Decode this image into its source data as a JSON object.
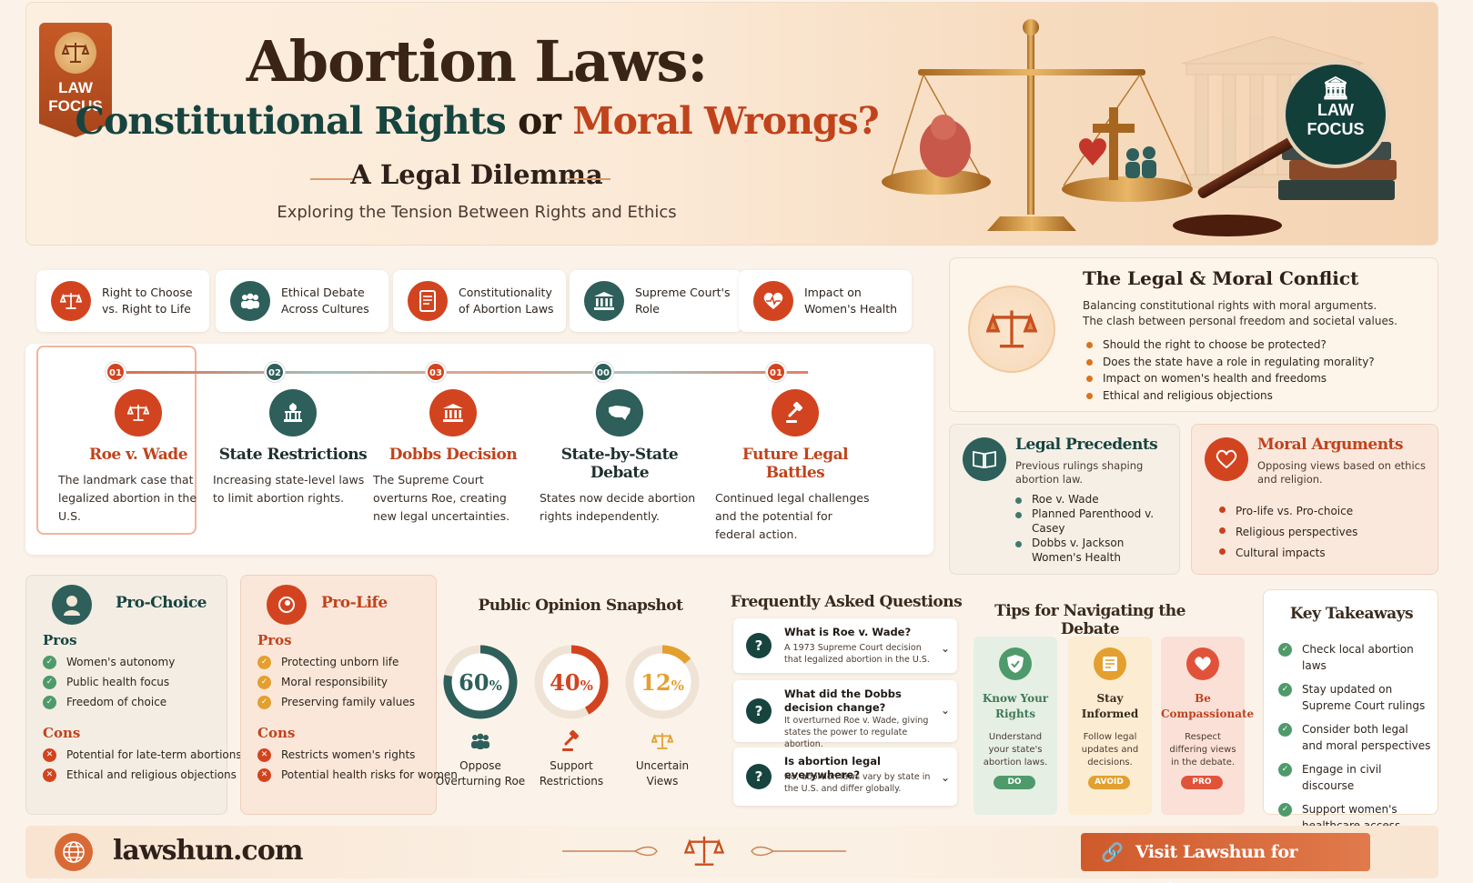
{
  "header": {
    "badge_left": "LAW\nFOCUS",
    "badge_left_line1": "LAW",
    "badge_left_line2": "FOCUS",
    "title": "Abortion Laws:",
    "subtitle_part1": "Constitutional Rights",
    "subtitle_or": "or",
    "subtitle_part2": "Moral Wrongs?",
    "dilemma": "A Legal Dilemma",
    "tagline": "Exploring the Tension Between Rights and Ethics",
    "badge_right_line1": "LAW",
    "badge_right_line2": "FOCUS"
  },
  "topics": [
    {
      "line1": "Right to Choose",
      "line2": "vs. Right to Life",
      "icon": "scales-icon",
      "color": "#d2441f"
    },
    {
      "line1": "Ethical Debate",
      "line2": "Across Cultures",
      "icon": "people-icon",
      "color": "#2e5f5a"
    },
    {
      "line1": "Constitutionality",
      "line2": "of Abortion Laws",
      "icon": "document-icon",
      "color": "#d2441f"
    },
    {
      "line1": "Supreme Court's",
      "line2": "Role",
      "icon": "courthouse-icon",
      "color": "#2e5f5a"
    },
    {
      "line1": "Impact on",
      "line2": "Women's Health",
      "icon": "heart-pulse-icon",
      "color": "#d2441f"
    }
  ],
  "timeline": [
    {
      "num": "01",
      "title": "Roe v. Wade",
      "desc": "The landmark case that legalized abortion in the U.S.",
      "color": "#d2441f",
      "title_color": "#c0431c",
      "icon": "scales-icon"
    },
    {
      "num": "02",
      "title": "State Restrictions",
      "desc": "Increasing state-level laws to limit abortion rights.",
      "color": "#2e5f5a",
      "title_color": "#1e2f2d",
      "icon": "statehouse-icon"
    },
    {
      "num": "03",
      "title": "Dobbs Decision",
      "desc": "The Supreme Court overturns Roe, creating new legal uncertainties.",
      "color": "#d2441f",
      "title_color": "#c0431c",
      "icon": "courthouse-icon"
    },
    {
      "num": "00",
      "title": "State-by-State Debate",
      "desc": "States now decide abortion rights independently.",
      "color": "#2e5f5a",
      "title_color": "#1e2f2d",
      "icon": "us-map-icon"
    },
    {
      "num": "01",
      "title": "Future Legal Battles",
      "desc": "Continued legal challenges and the potential for federal action.",
      "color": "#d2441f",
      "title_color": "#c0431c",
      "icon": "gavel-icon"
    }
  ],
  "conflict": {
    "title": "The Legal & Moral Conflict",
    "desc_line1": "Balancing constitutional rights with moral arguments.",
    "desc_line2": "The clash between personal freedom and societal values.",
    "bullets": [
      "Should the right to choose be protected?",
      "Does the state have a role in regulating morality?",
      "Impact on women's health and freedoms",
      "Ethical and religious objections"
    ]
  },
  "precedents": {
    "title": "Legal Precedents",
    "desc": "Previous rulings shaping abortion law.",
    "items": [
      "Roe v. Wade",
      "Planned Parenthood v. Casey",
      "Dobbs v. Jackson Women's Health"
    ]
  },
  "moral": {
    "title": "Moral Arguments",
    "desc": "Opposing views based on ethics and religion.",
    "items": [
      "Pro-life vs. Pro-choice",
      "Religious perspectives",
      "Cultural impacts"
    ]
  },
  "pro_choice": {
    "title": "Pro-Choice",
    "pros_label": "Pros",
    "pros": [
      "Women's autonomy",
      "Public health focus",
      "Freedom of choice"
    ],
    "cons_label": "Cons",
    "cons": [
      "Potential for late-term abortions",
      "Ethical and religious objections"
    ]
  },
  "pro_life": {
    "title": "Pro-Life",
    "pros_label": "Pros",
    "pros": [
      "Protecting unborn life",
      "Moral responsibility",
      "Preserving family values"
    ],
    "cons_label": "Cons",
    "cons": [
      "Restricts women's rights",
      "Potential health risks for women"
    ]
  },
  "opinion": {
    "title": "Public Opinion Snapshot",
    "items": [
      {
        "value": "60",
        "pct": 60,
        "line1": "Oppose",
        "line2": "Overturning Roe",
        "color": "#2e5f5a",
        "icon": "people-icon"
      },
      {
        "value": "40",
        "pct": 40,
        "line1": "Support",
        "line2": "Restrictions",
        "color": "#d2441f",
        "icon": "gavel-icon"
      },
      {
        "value": "12",
        "pct": 12,
        "line1": "Uncertain",
        "line2": "Views",
        "color": "#e3a02e",
        "icon": "scales-icon"
      }
    ],
    "pct_sign": "%"
  },
  "faq": {
    "title": "Frequently Asked Questions",
    "items": [
      {
        "q": "What is Roe v. Wade?",
        "a": "A 1973 Supreme Court decision that legalized abortion in the U.S."
      },
      {
        "q": "What did the Dobbs decision change?",
        "a": "It overturned Roe v. Wade, giving states the power to regulate abortion."
      },
      {
        "q": "Is abortion legal everywhere?",
        "a": "No, abortion laws vary by state in the U.S. and differ globally."
      }
    ]
  },
  "tips": {
    "title": "Tips for Navigating the Debate",
    "items": [
      {
        "title": "Know Your Rights",
        "desc": "Understand your state's abortion laws.",
        "badge": "DO",
        "bg": "#e6efe4",
        "accent": "#4f9a6a",
        "title_color": "#3e7a55",
        "icon": "shield-icon"
      },
      {
        "title": "Stay Informed",
        "desc": "Follow legal updates and decisions.",
        "badge": "AVOID",
        "bg": "#fbecd2",
        "accent": "#e3a02e",
        "title_color": "#3a2a1e",
        "icon": "newspaper-icon"
      },
      {
        "title": "Be Compassionate",
        "desc": "Respect differing views in the debate.",
        "badge": "PRO",
        "bg": "#fbe0d8",
        "accent": "#e0533a",
        "title_color": "#c0431c",
        "icon": "heart-icon"
      }
    ]
  },
  "takeaways": {
    "title": "Key Takeaways",
    "items": [
      "Check local abortion laws",
      "Stay updated on Supreme Court rulings",
      "Consider both legal and moral perspectives",
      "Engage in civil discourse",
      "Support women's healthcare access"
    ]
  },
  "footer": {
    "site": "lawshun.com",
    "cta": "Visit Lawshun for Updates"
  },
  "colors": {
    "teal": "#17443f",
    "orange": "#d2441f",
    "green": "#4f9a6a",
    "amber": "#e3a02e"
  }
}
